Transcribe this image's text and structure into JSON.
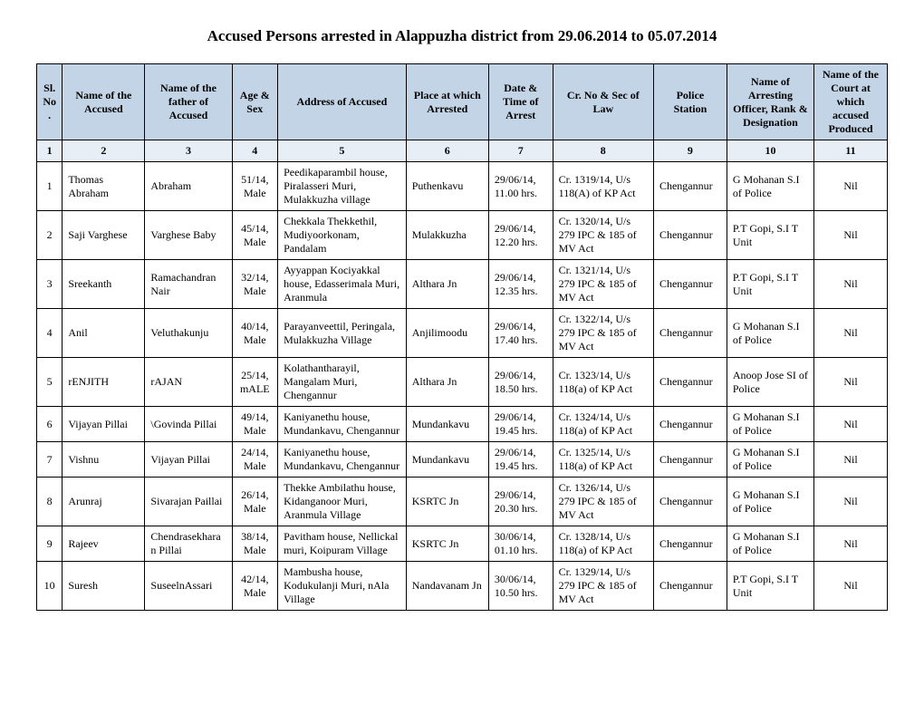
{
  "title": "Accused Persons arrested in Alappuzha district from 29.06.2014 to 05.07.2014",
  "columns": [
    "Sl. No.",
    "Name of the Accused",
    "Name of the father of Accused",
    "Age & Sex",
    "Address of Accused",
    "Place at which Arrested",
    "Date & Time of Arrest",
    "Cr. No & Sec of Law",
    "Police Station",
    "Name of Arresting Officer, Rank & Designation",
    "Name of the Court at which accused Produced"
  ],
  "numrow": [
    "1",
    "2",
    "3",
    "4",
    "5",
    "6",
    "7",
    "8",
    "9",
    "10",
    "11"
  ],
  "rows": [
    {
      "sl": "1",
      "name": "Thomas Abraham",
      "father": "Abraham",
      "age": "51/14, Male",
      "addr": "Peedikaparambil house, Piralasseri Muri, Mulakkuzha village",
      "place": "Puthenkavu",
      "date": "29/06/14, 11.00 hrs.",
      "cr": "Cr. 1319/14, U/s 118(A) of KP Act",
      "station": "Chengannur",
      "officer": "G Mohanan S.I of Police",
      "court": "Nil"
    },
    {
      "sl": "2",
      "name": "Saji Varghese",
      "father": "Varghese Baby",
      "age": "45/14, Male",
      "addr": "Chekkala Thekkethil, Mudiyoorkonam, Pandalam",
      "place": "Mulakkuzha",
      "date": "29/06/14, 12.20 hrs.",
      "cr": "Cr. 1320/14, U/s 279 IPC & 185 of MV Act",
      "station": "Chengannur",
      "officer": "P.T Gopi, S.I T Unit",
      "court": "Nil"
    },
    {
      "sl": "3",
      "name": "Sreekanth",
      "father": "Ramachandran Nair",
      "age": "32/14, Male",
      "addr": "Ayyappan Kociyakkal house, Edasserimala Muri, Aranmula",
      "place": "Althara Jn",
      "date": "29/06/14, 12.35 hrs.",
      "cr": "Cr. 1321/14, U/s 279 IPC & 185 of MV Act",
      "station": "Chengannur",
      "officer": "P.T Gopi, S.I T Unit",
      "court": "Nil"
    },
    {
      "sl": "4",
      "name": "Anil",
      "father": "Veluthakunju",
      "age": "40/14, Male",
      "addr": "Parayanveettil, Peringala, Mulakkuzha Village",
      "place": "Anjilimoodu",
      "date": "29/06/14, 17.40 hrs.",
      "cr": "Cr. 1322/14, U/s 279 IPC & 185 of MV Act",
      "station": "Chengannur",
      "officer": "G Mohanan S.I of Police",
      "court": "Nil"
    },
    {
      "sl": "5",
      "name": "rENJITH",
      "father": "rAJAN",
      "age": "25/14, mALE",
      "addr": "Kolathantharayil, Mangalam Muri, Chengannur",
      "place": "Althara Jn",
      "date": "29/06/14, 18.50 hrs.",
      "cr": "Cr. 1323/14, U/s 118(a) of KP Act",
      "station": "Chengannur",
      "officer": "Anoop Jose SI of Police",
      "court": "Nil"
    },
    {
      "sl": "6",
      "name": "Vijayan Pillai",
      "father": "\\Govinda Pillai",
      "age": "49/14, Male",
      "addr": "Kaniyanethu house, Mundankavu, Chengannur",
      "place": "Mundankavu",
      "date": "29/06/14, 19.45 hrs.",
      "cr": "Cr. 1324/14, U/s 118(a) of KP Act",
      "station": "Chengannur",
      "officer": "G Mohanan S.I of Police",
      "court": "Nil"
    },
    {
      "sl": "7",
      "name": "Vishnu",
      "father": "Vijayan Pillai",
      "age": "24/14, Male",
      "addr": "Kaniyanethu house, Mundankavu, Chengannur",
      "place": "Mundankavu",
      "date": "29/06/14, 19.45 hrs.",
      "cr": "Cr. 1325/14, U/s 118(a) of KP Act",
      "station": "Chengannur",
      "officer": "G Mohanan S.I of Police",
      "court": "Nil"
    },
    {
      "sl": "8",
      "name": "Arunraj",
      "father": "Sivarajan Paillai",
      "age": "26/14, Male",
      "addr": "Thekke Ambilathu house, Kidanganoor Muri, Aranmula Village",
      "place": "KSRTC Jn",
      "date": "29/06/14, 20.30 hrs.",
      "cr": "Cr. 1326/14, U/s 279 IPC & 185 of MV Act",
      "station": "Chengannur",
      "officer": "G Mohanan S.I of Police",
      "court": "Nil"
    },
    {
      "sl": "9",
      "name": "Rajeev",
      "father": "Chendrasekharan Pillai",
      "age": "38/14, Male",
      "addr": "Pavitham house, Nellickal muri, Koipuram Village",
      "place": "KSRTC Jn",
      "date": "30/06/14, 01.10 hrs.",
      "cr": "Cr. 1328/14, U/s 118(a) of KP Act",
      "station": "Chengannur",
      "officer": "G Mohanan S.I of Police",
      "court": "Nil"
    },
    {
      "sl": "10",
      "name": "Suresh",
      "father": "SuseelnAssari",
      "age": "42/14, Male",
      "addr": "Mambusha house, Kodukulanji Muri, nAla Village",
      "place": "Nandavanam Jn",
      "date": "30/06/14, 10.50 hrs.",
      "cr": "Cr. 1329/14, U/s 279 IPC & 185 of MV Act",
      "station": "Chengannur",
      "officer": "P.T Gopi, S.I T Unit",
      "court": "Nil"
    }
  ]
}
